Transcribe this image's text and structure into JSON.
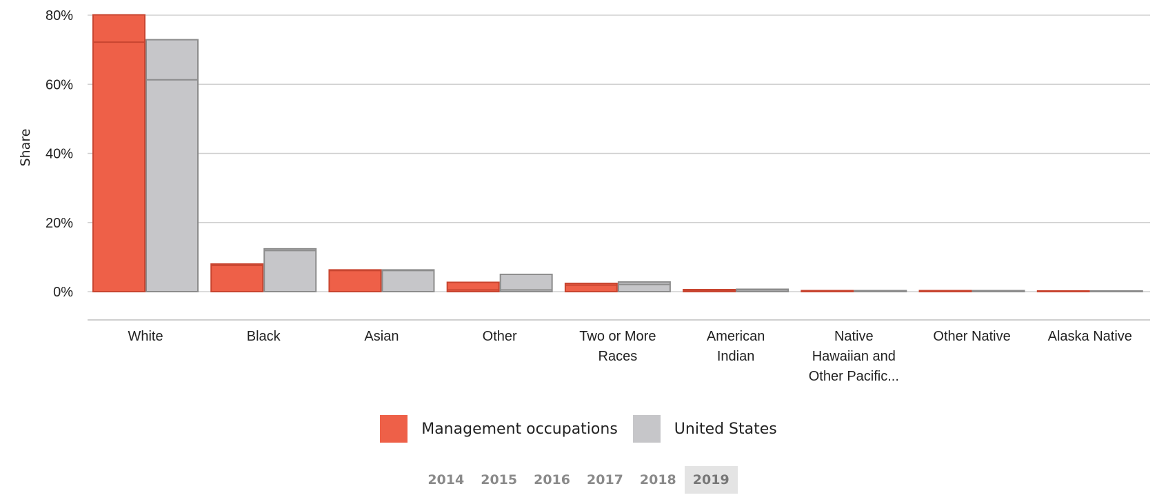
{
  "chart_data": {
    "type": "bar",
    "ylabel": "Share",
    "xlabel": "",
    "ylim": [
      0,
      80
    ],
    "yticks": [
      "0%",
      "20%",
      "40%",
      "60%",
      "80%"
    ],
    "grid": true,
    "legend_position": "bottom",
    "categories": [
      [
        "White"
      ],
      [
        "Black"
      ],
      [
        "Asian"
      ],
      [
        "Other"
      ],
      [
        "Two or More",
        "Races"
      ],
      [
        "American",
        "Indian"
      ],
      [
        "Native",
        "Hawaiian and",
        "Other Pacific..."
      ],
      [
        "Other Native"
      ],
      [
        "Alaska Native"
      ]
    ],
    "series": [
      {
        "name": "Management occupations",
        "color": "#ee6048",
        "stroke": "#c84530",
        "values": [
          80.1,
          8.0,
          6.3,
          2.7,
          2.4,
          0.6,
          0.3,
          0.3,
          0.2
        ],
        "inner_marks": [
          72.2,
          7.6,
          6.1,
          0.5,
          1.9,
          0.4,
          0.2,
          0.2,
          0.1
        ]
      },
      {
        "name": "United States",
        "color": "#c6c6c9",
        "stroke": "#8c8c8c",
        "values": [
          72.9,
          12.4,
          6.3,
          5.0,
          2.8,
          0.7,
          0.3,
          0.3,
          0.2
        ],
        "inner_marks": [
          61.3,
          11.9,
          6.1,
          0.5,
          2.1,
          0.5,
          0.2,
          0.2,
          0.1
        ]
      }
    ]
  },
  "years": [
    "2014",
    "2015",
    "2016",
    "2017",
    "2018",
    "2019"
  ],
  "active_year": "2019"
}
